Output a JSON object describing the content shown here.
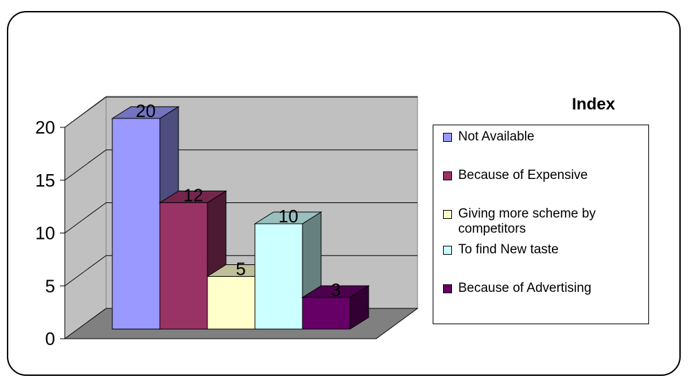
{
  "chart_data": {
    "type": "bar",
    "title": "Index",
    "categories": [
      "Not Available",
      "Because of Expensive",
      "Giving more scheme by competitors",
      "To find New taste",
      "Because of Advertising"
    ],
    "values": [
      20,
      12,
      5,
      10,
      3
    ],
    "data_labels": [
      "20",
      "12",
      "5",
      "10",
      "3"
    ],
    "colors": [
      "#9999ff",
      "#993366",
      "#ffffcc",
      "#ccffff",
      "#660066"
    ],
    "y_ticks": [
      "0",
      "5",
      "10",
      "15",
      "20"
    ],
    "ylim": [
      0,
      20
    ],
    "legend_position": "right",
    "style": "3d",
    "grid": true
  }
}
